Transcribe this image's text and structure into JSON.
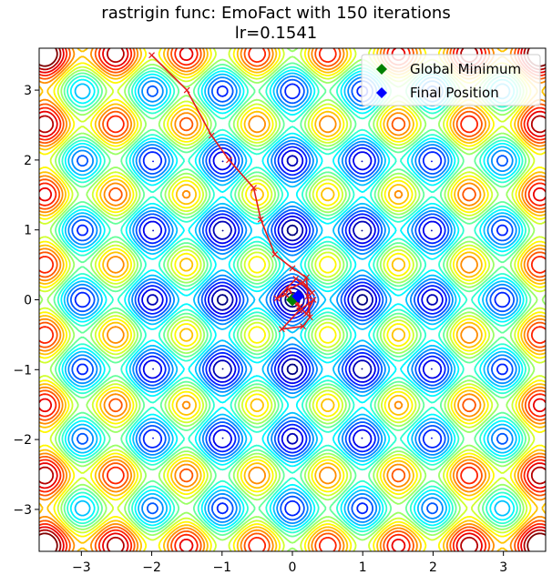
{
  "chart_data": {
    "type": "contour",
    "title": "rastrigin func: EmoFact with 150 iterations",
    "subtitle": "lr=0.1541",
    "xlim": [
      -3.6,
      3.6
    ],
    "ylim": [
      -3.6,
      3.6
    ],
    "xticks": [
      -3,
      -2,
      -1,
      0,
      1,
      2,
      3
    ],
    "yticks": [
      -3,
      -2,
      -1,
      0,
      1,
      2,
      3
    ],
    "xtick_labels": [
      "−3",
      "−2",
      "−1",
      "0",
      "1",
      "2",
      "3"
    ],
    "ytick_labels": [
      "−3",
      "−2",
      "−1",
      "0",
      "1",
      "2",
      "3"
    ],
    "grid": false,
    "colormap": "jet",
    "function": "rastrigin",
    "legend": {
      "position": "top-right",
      "entries": [
        {
          "label": "Global Minimum",
          "marker": "diamond",
          "color": "#008000"
        },
        {
          "label": "Final Position",
          "marker": "diamond",
          "color": "#0000ff"
        }
      ]
    },
    "global_minimum": {
      "x": 0.0,
      "y": 0.0
    },
    "final_position": {
      "x": 0.08,
      "y": 0.05
    },
    "path": {
      "color": "#e41a1c",
      "points": [
        [
          -2.0,
          3.5
        ],
        [
          -1.5,
          3.0
        ],
        [
          -1.15,
          2.35
        ],
        [
          -0.9,
          2.0
        ],
        [
          -0.55,
          1.6
        ],
        [
          -0.45,
          1.15
        ],
        [
          -0.25,
          0.65
        ],
        [
          0.0,
          0.45
        ],
        [
          0.2,
          0.32
        ],
        [
          0.22,
          0.05
        ],
        [
          0.25,
          -0.25
        ],
        [
          0.15,
          -0.38
        ],
        [
          -0.15,
          -0.42
        ],
        [
          0.1,
          -0.15
        ],
        [
          0.3,
          0.0
        ],
        [
          0.2,
          -0.2
        ],
        [
          -0.1,
          0.08
        ],
        [
          -0.22,
          0.02
        ],
        [
          0.05,
          0.3
        ],
        [
          0.28,
          0.1
        ],
        [
          0.15,
          0.25
        ],
        [
          -0.05,
          0.15
        ],
        [
          0.1,
          -0.1
        ],
        [
          0.05,
          0.05
        ],
        [
          0.08,
          0.05
        ]
      ]
    }
  }
}
